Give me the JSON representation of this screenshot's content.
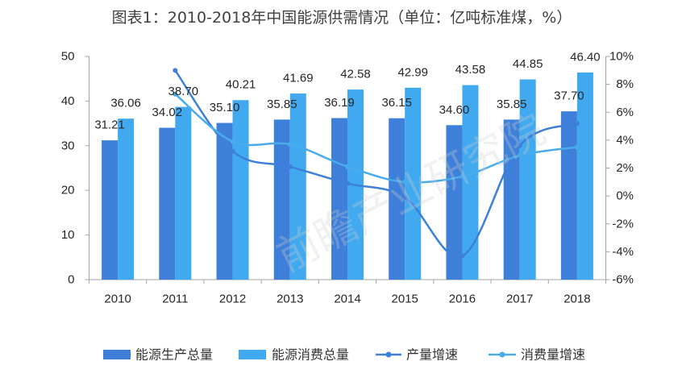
{
  "watermark": "前瞻产业研究院",
  "colors": {
    "axis": "#A6A6A6",
    "text": "#262626",
    "title": "#404040"
  },
  "chart_data": {
    "type": "bar",
    "title": "图表1：2010-2018年中国能源供需情况（单位：亿吨标准煤，%）",
    "xlabel": "",
    "ylabel": "",
    "categories": [
      "2010",
      "2011",
      "2012",
      "2013",
      "2014",
      "2015",
      "2016",
      "2017",
      "2018"
    ],
    "series": [
      {
        "name": "能源生产总量",
        "type": "bar",
        "axis": "left",
        "color": "#3D7FD9",
        "values": [
          31.21,
          34.02,
          35.1,
          35.85,
          36.19,
          36.15,
          34.6,
          35.85,
          37.7
        ]
      },
      {
        "name": "能源消费总量",
        "type": "bar",
        "axis": "left",
        "color": "#41A9F0",
        "values": [
          36.06,
          38.7,
          40.21,
          41.69,
          42.58,
          42.99,
          43.58,
          44.85,
          46.4
        ]
      },
      {
        "name": "产量增速",
        "type": "line",
        "axis": "right",
        "color": "#3D7FD9",
        "values": [
          null,
          9.0,
          3.2,
          2.1,
          0.9,
          -0.1,
          -4.3,
          3.6,
          5.2
        ]
      },
      {
        "name": "消费量增速",
        "type": "line",
        "axis": "right",
        "color": "#4AABEB",
        "values": [
          null,
          7.3,
          3.9,
          3.7,
          2.1,
          1.0,
          1.4,
          2.9,
          3.5
        ]
      }
    ],
    "ylim": [
      0,
      50
    ],
    "y2lim": [
      -6,
      10
    ],
    "left_axis": {
      "ticks": [
        0,
        10,
        20,
        30,
        40,
        50
      ]
    },
    "right_axis": {
      "ticks": [
        -6,
        -4,
        -2,
        0,
        2,
        4,
        6,
        8,
        10
      ],
      "suffix": "%"
    },
    "grid": false,
    "legend": "bottom"
  }
}
